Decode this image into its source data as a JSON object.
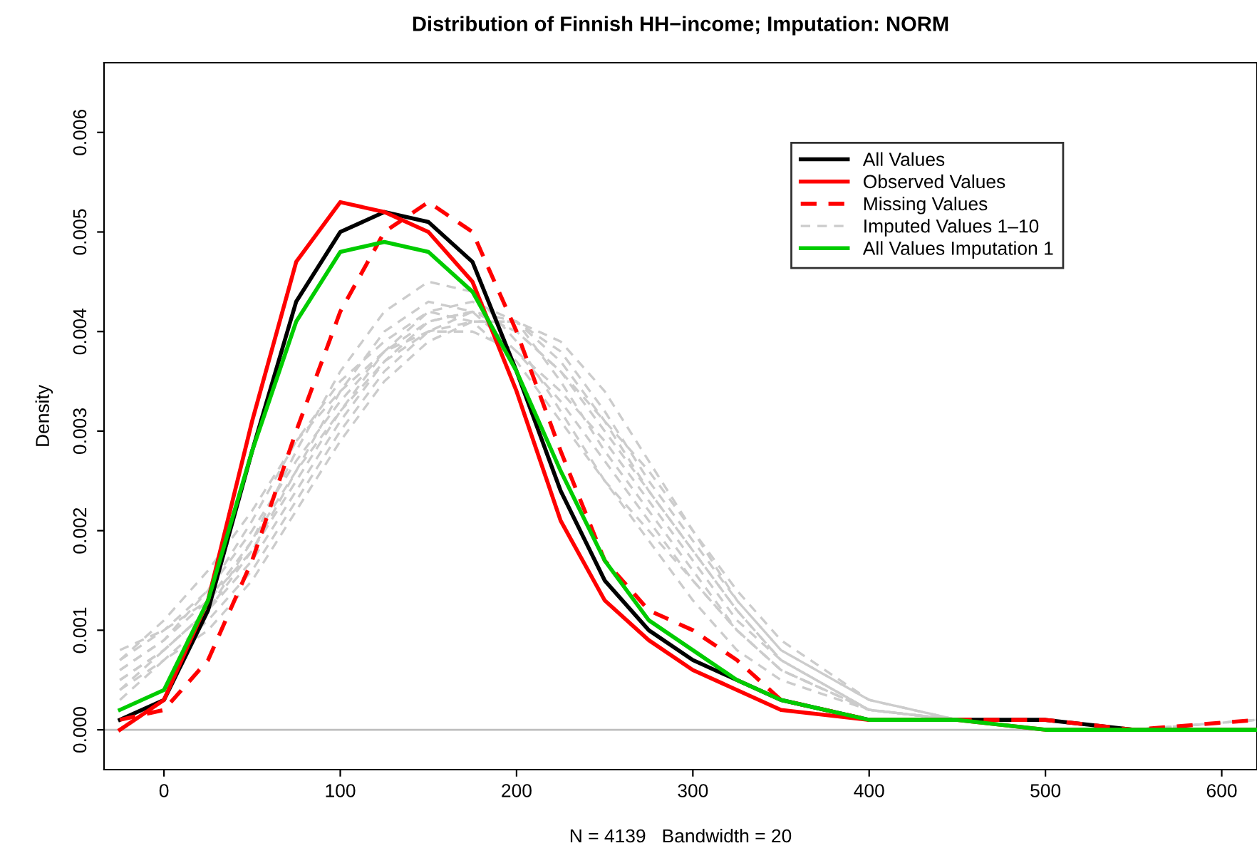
{
  "chart_data": {
    "type": "line",
    "title": "Distribution of Finnish HH−income; Imputation: NORM",
    "xlabel": "N = 4139   Bandwidth = 20",
    "ylabel": "Density",
    "x": [
      -25,
      0,
      25,
      50,
      75,
      100,
      125,
      150,
      175,
      200,
      225,
      250,
      275,
      300,
      325,
      350,
      400,
      450,
      500,
      550,
      620
    ],
    "xlim": [
      -34,
      620
    ],
    "ylim": [
      -0.0004,
      0.0067
    ],
    "xticks": [
      0,
      100,
      200,
      300,
      400,
      500,
      600
    ],
    "yticks": [
      {
        "value": 0,
        "label": "0.000"
      },
      {
        "value": 0.001,
        "label": "0.001"
      },
      {
        "value": 0.002,
        "label": "0.002"
      },
      {
        "value": 0.003,
        "label": "0.003"
      },
      {
        "value": 0.004,
        "label": "0.004"
      },
      {
        "value": 0.005,
        "label": "0.005"
      },
      {
        "value": 0.006,
        "label": "0.006"
      }
    ],
    "grid": false,
    "legend": "top right",
    "marker": "none",
    "ref_lines": [
      {
        "axis": "y",
        "value": 0,
        "color": "#bebebe",
        "line_style": "solid"
      }
    ],
    "series": [
      {
        "name": "All Values",
        "color": "#000000",
        "line_style": "solid",
        "values": [
          0.0001,
          0.0003,
          0.0012,
          0.0028,
          0.0043,
          0.005,
          0.0052,
          0.0051,
          0.0047,
          0.0036,
          0.0024,
          0.0015,
          0.001,
          0.0007,
          0.0005,
          0.0003,
          0.0001,
          0.0001,
          0.0001,
          0.0,
          0.0
        ]
      },
      {
        "name": "Observed Values",
        "color": "#ff0000",
        "line_style": "solid",
        "values": [
          0.0,
          0.0003,
          0.0013,
          0.0031,
          0.0047,
          0.0053,
          0.0052,
          0.005,
          0.0045,
          0.0034,
          0.0021,
          0.0013,
          0.0009,
          0.0006,
          0.0004,
          0.0002,
          0.0001,
          0.0001,
          0.0,
          0.0,
          0.0
        ]
      },
      {
        "name": "Missing Values",
        "color": "#ff0000",
        "line_style": "dashed",
        "values": [
          0.0001,
          0.0002,
          0.0007,
          0.0017,
          0.003,
          0.0042,
          0.005,
          0.0053,
          0.005,
          0.004,
          0.0028,
          0.0017,
          0.0012,
          0.001,
          0.0007,
          0.0003,
          0.0001,
          0.0001,
          0.0001,
          0.0,
          0.0001
        ]
      },
      {
        "name": "Imputed Values 1–10",
        "color": "#cccccc",
        "line_style": "dashed",
        "values": [
          0.0006,
          0.0009,
          0.0013,
          0.0018,
          0.0025,
          0.0032,
          0.0038,
          0.0042,
          0.0043,
          0.0041,
          0.0035,
          0.0028,
          0.0022,
          0.0016,
          0.001,
          0.0006,
          0.0002,
          0.0001,
          0.0,
          0.0,
          0.0
        ]
      },
      {
        "color": "#cccccc",
        "line_style": "dashed",
        "values": [
          0.0005,
          0.0008,
          0.0012,
          0.0019,
          0.0028,
          0.0036,
          0.0042,
          0.0045,
          0.0044,
          0.0039,
          0.0032,
          0.0025,
          0.0019,
          0.0013,
          0.0008,
          0.0005,
          0.0002,
          0.0001,
          0.0,
          0.0,
          0.0
        ]
      },
      {
        "color": "#cccccc",
        "line_style": "dashed",
        "values": [
          0.0007,
          0.001,
          0.0014,
          0.002,
          0.0027,
          0.0033,
          0.0038,
          0.0041,
          0.0042,
          0.004,
          0.0036,
          0.003,
          0.0024,
          0.0018,
          0.0012,
          0.0007,
          0.0002,
          0.0001,
          0.0001,
          0.0,
          0.0
        ]
      },
      {
        "color": "#cccccc",
        "line_style": "dashed",
        "values": [
          0.0004,
          0.0007,
          0.0011,
          0.0016,
          0.0023,
          0.003,
          0.0036,
          0.004,
          0.0042,
          0.0041,
          0.0038,
          0.0032,
          0.0025,
          0.0019,
          0.0013,
          0.0008,
          0.0003,
          0.0001,
          0.0001,
          0.0,
          0.0
        ]
      },
      {
        "color": "#cccccc",
        "line_style": "dashed",
        "values": [
          0.0006,
          0.0009,
          0.0014,
          0.0021,
          0.0029,
          0.0035,
          0.0039,
          0.0042,
          0.0041,
          0.0037,
          0.0031,
          0.0025,
          0.002,
          0.0015,
          0.001,
          0.0006,
          0.0002,
          0.0001,
          0.0,
          0.0,
          0.0001
        ]
      },
      {
        "color": "#cccccc",
        "line_style": "dashed",
        "values": [
          0.0005,
          0.0008,
          0.0012,
          0.0017,
          0.0024,
          0.0031,
          0.0037,
          0.0041,
          0.0042,
          0.004,
          0.0036,
          0.0031,
          0.0026,
          0.002,
          0.0014,
          0.0009,
          0.0003,
          0.0001,
          0.0001,
          0.0,
          0.0001
        ]
      },
      {
        "color": "#cccccc",
        "line_style": "dashed",
        "values": [
          0.0007,
          0.0011,
          0.0016,
          0.0022,
          0.0029,
          0.0034,
          0.0038,
          0.004,
          0.004,
          0.0038,
          0.0034,
          0.0029,
          0.0023,
          0.0017,
          0.0011,
          0.0007,
          0.0002,
          0.0001,
          0.0001,
          0.0,
          0.0001
        ]
      },
      {
        "color": "#cccccc",
        "line_style": "dashed",
        "values": [
          0.0004,
          0.0008,
          0.0012,
          0.0018,
          0.0026,
          0.0034,
          0.004,
          0.0043,
          0.0042,
          0.0038,
          0.0033,
          0.0027,
          0.0021,
          0.0015,
          0.001,
          0.0006,
          0.0002,
          0.0001,
          0.0,
          0.0,
          0.0001
        ]
      },
      {
        "color": "#cccccc",
        "line_style": "dashed",
        "values": [
          0.0008,
          0.001,
          0.0013,
          0.0019,
          0.0026,
          0.0032,
          0.0037,
          0.004,
          0.0041,
          0.0041,
          0.0039,
          0.0034,
          0.0027,
          0.002,
          0.0013,
          0.0008,
          0.0003,
          0.0001,
          0.0001,
          0.0,
          0.0
        ]
      },
      {
        "color": "#cccccc",
        "line_style": "dashed",
        "values": [
          0.0003,
          0.0007,
          0.001,
          0.0015,
          0.0022,
          0.0029,
          0.0035,
          0.0039,
          0.0041,
          0.0041,
          0.0037,
          0.0031,
          0.0024,
          0.0018,
          0.0012,
          0.0007,
          0.0002,
          0.0001,
          0.0001,
          0.0,
          0.0
        ]
      },
      {
        "name": "All Values Imputation 1",
        "color": "#00cc00",
        "line_style": "solid",
        "values": [
          0.0002,
          0.0004,
          0.0013,
          0.0028,
          0.0041,
          0.0048,
          0.0049,
          0.0048,
          0.0044,
          0.0036,
          0.0026,
          0.0017,
          0.0011,
          0.0008,
          0.0005,
          0.0003,
          0.0001,
          0.0001,
          0.0,
          0.0,
          0.0
        ]
      }
    ]
  }
}
